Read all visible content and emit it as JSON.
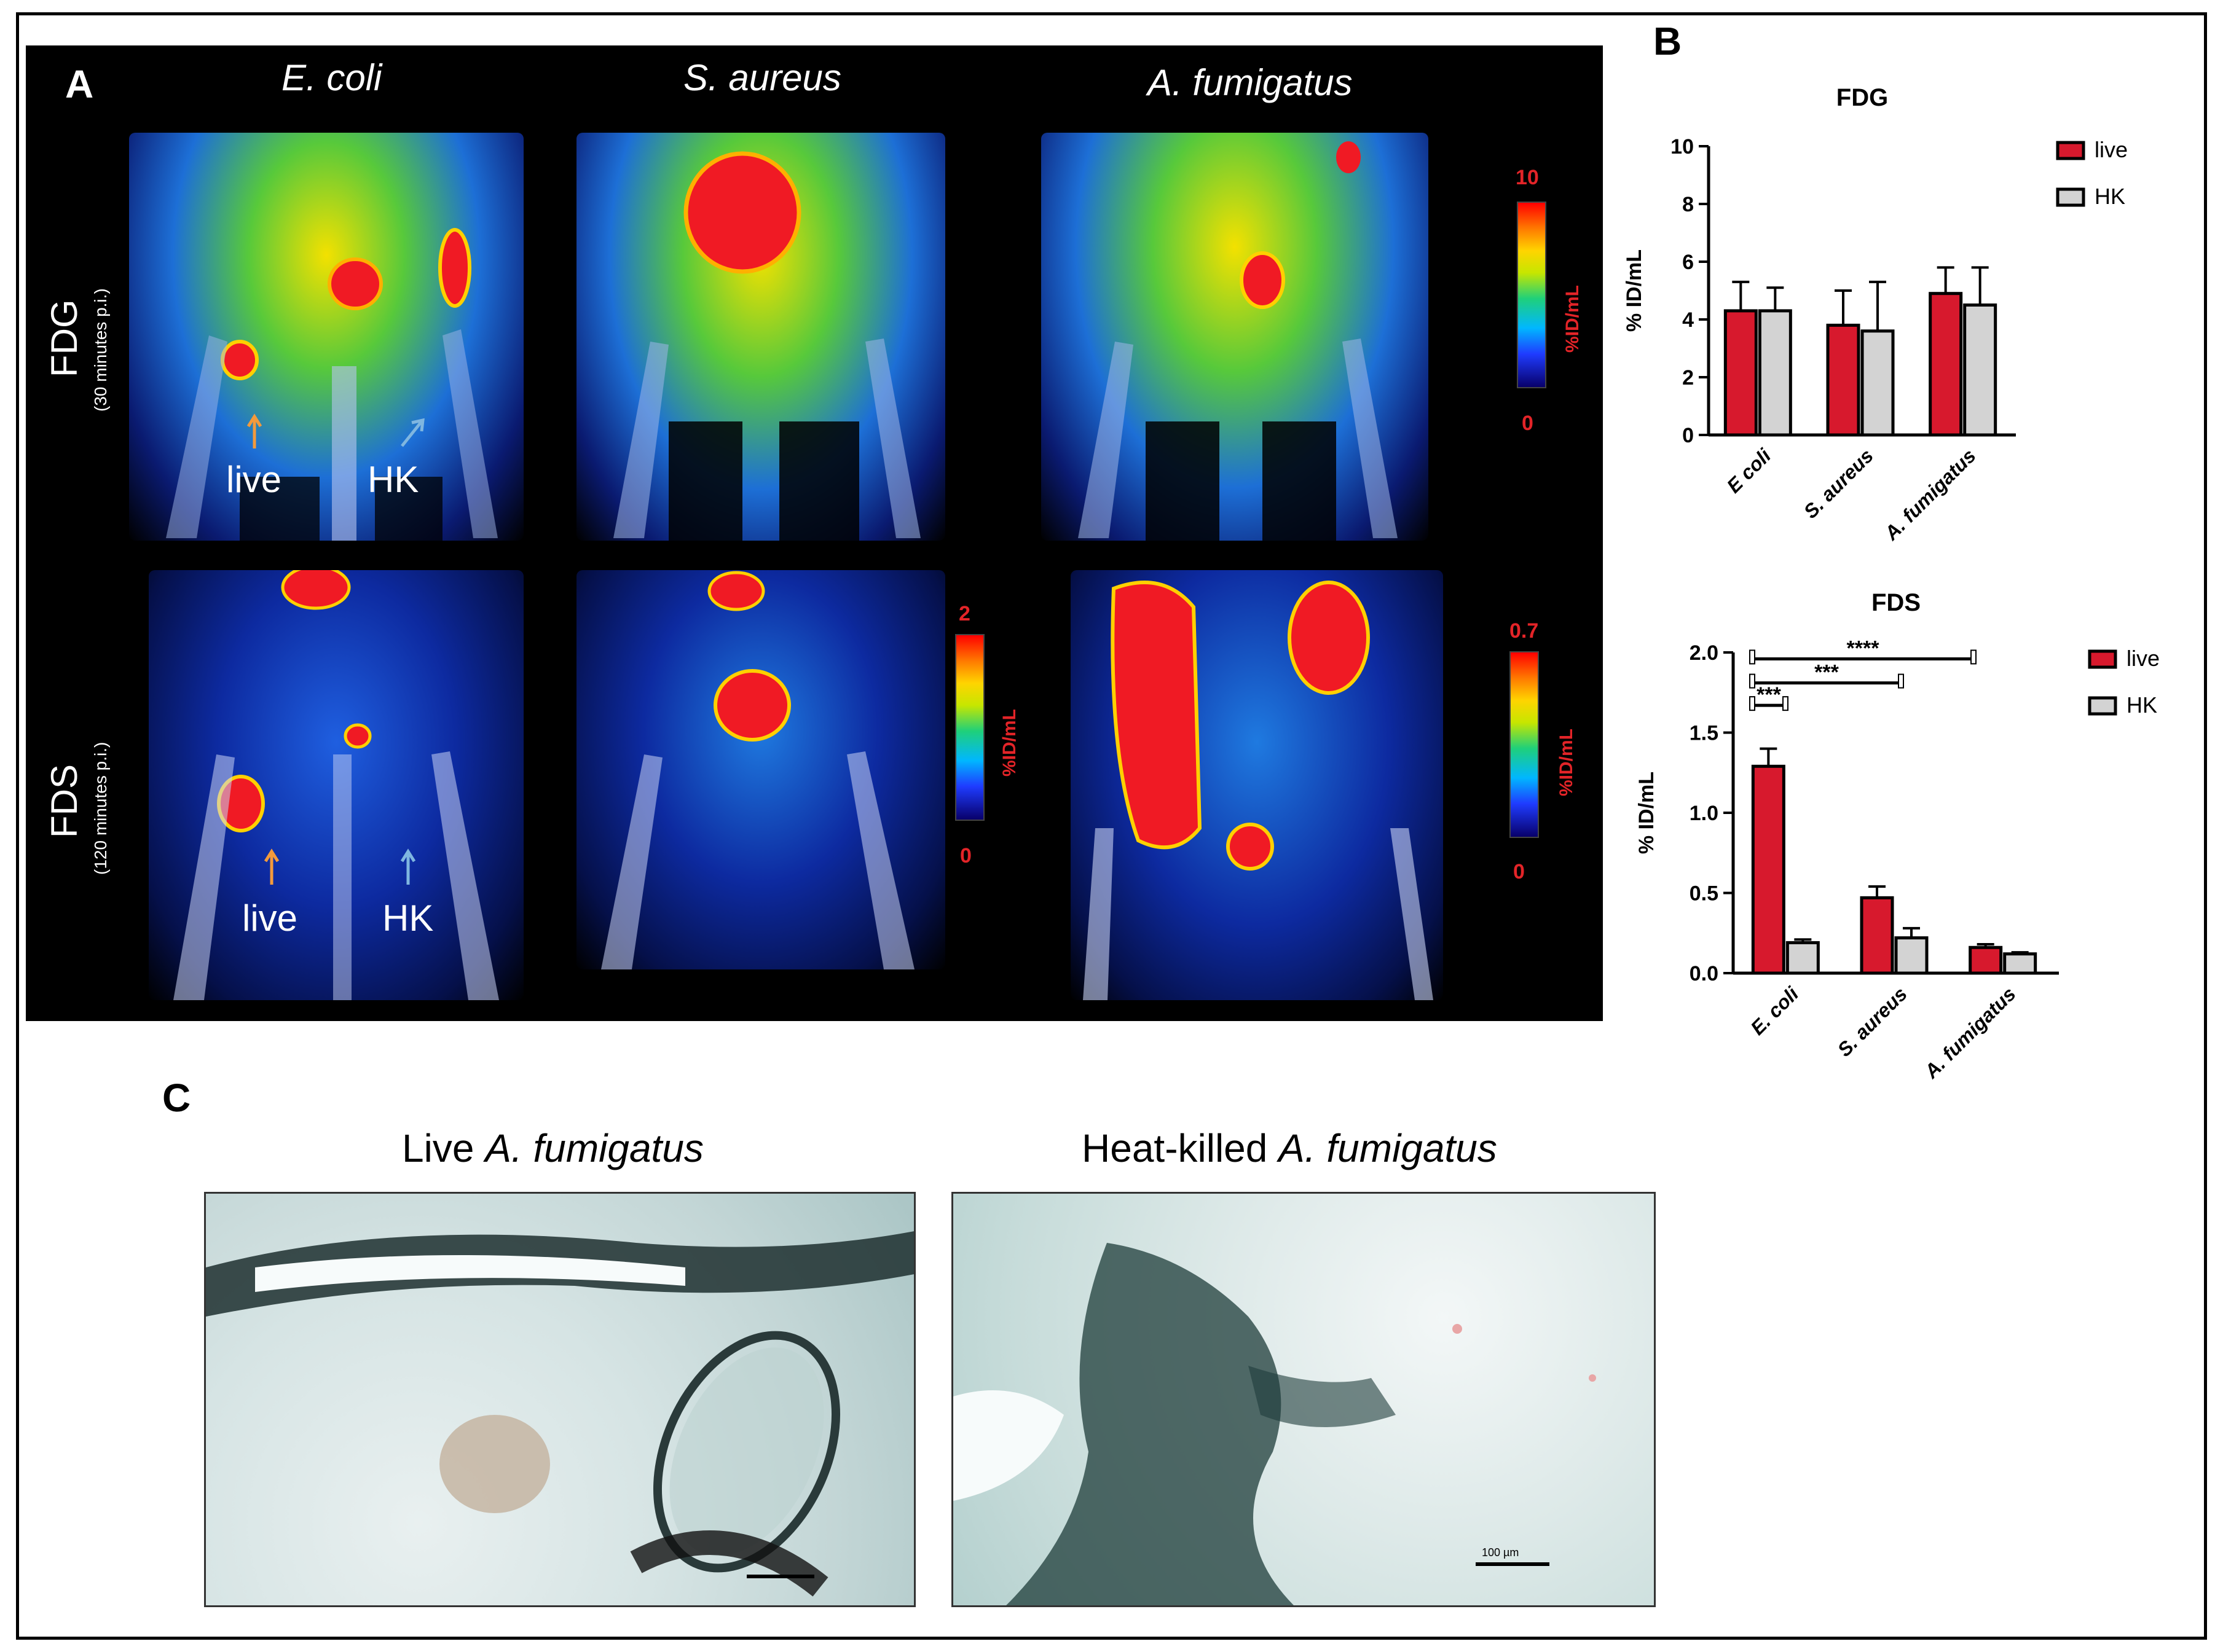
{
  "panel_a": {
    "letter": "A",
    "organisms": [
      "E. coli",
      "S. aureus",
      "A. fumigatus"
    ],
    "rows": [
      {
        "tracer": "FDG",
        "time": "(30 minutes p.i.)"
      },
      {
        "tracer": "FDS",
        "time": "(120 minutes p.i.)"
      }
    ],
    "arrows": {
      "live": "live",
      "hk": "HK",
      "live_color": "#f39a3c",
      "hk_color": "#7fb6e0"
    },
    "colorbars": [
      {
        "max": "10",
        "min": "0",
        "unit": "%ID/mL"
      },
      {
        "max": "2",
        "min": "0",
        "unit": "%ID/mL"
      },
      {
        "max": "0.7",
        "min": "0",
        "unit": "%ID/mL"
      }
    ]
  },
  "panel_b": {
    "letter": "B"
  },
  "panel_c": {
    "letter": "C",
    "live_title_plain": "Live ",
    "live_title_italic": "A. fumigatus",
    "hk_title_plain": "Heat-killed ",
    "hk_title_italic": "A. fumigatus",
    "scale_label": "100 µm"
  },
  "chart_data": [
    {
      "type": "bar",
      "title": "FDG",
      "ylabel": "% ID/mL",
      "categories": [
        "E coli",
        "S. aureus",
        "A. fumigatus"
      ],
      "ylim": [
        0,
        10
      ],
      "yticks": [
        "0",
        "2",
        "4",
        "6",
        "8",
        "10"
      ],
      "series": [
        {
          "name": "live",
          "values": [
            4.3,
            3.8,
            4.9
          ],
          "errors": [
            1.0,
            1.2,
            0.9
          ]
        },
        {
          "name": "HK",
          "values": [
            4.3,
            3.6,
            4.5
          ],
          "errors": [
            0.8,
            1.7,
            1.3
          ]
        }
      ],
      "colors": {
        "live": "#d7192d",
        "HK": "#d3d3d3"
      },
      "legend_position": "top-right"
    },
    {
      "type": "bar",
      "title": "FDS",
      "ylabel": "% ID/mL",
      "categories": [
        "E. coli",
        "S. aureus",
        "A. fumigatus"
      ],
      "ylim": [
        0,
        2.0
      ],
      "yticks": [
        "0.0",
        "0.5",
        "1.0",
        "1.5",
        "2.0"
      ],
      "series": [
        {
          "name": "live",
          "values": [
            1.29,
            0.47,
            0.16
          ],
          "errors": [
            0.11,
            0.07,
            0.02
          ]
        },
        {
          "name": "HK",
          "values": [
            0.19,
            0.22,
            0.12
          ],
          "errors": [
            0.02,
            0.06,
            0.01
          ]
        }
      ],
      "colors": {
        "live": "#d7192d",
        "HK": "#d3d3d3"
      },
      "legend_position": "top-right",
      "significance": [
        {
          "label": "***",
          "from": "E. coli live",
          "to": "E. coli HK"
        },
        {
          "label": "***",
          "from": "E. coli live",
          "to": "S. aureus live"
        },
        {
          "label": "****",
          "from": "E. coli live",
          "to": "A. fumigatus live"
        }
      ]
    }
  ]
}
